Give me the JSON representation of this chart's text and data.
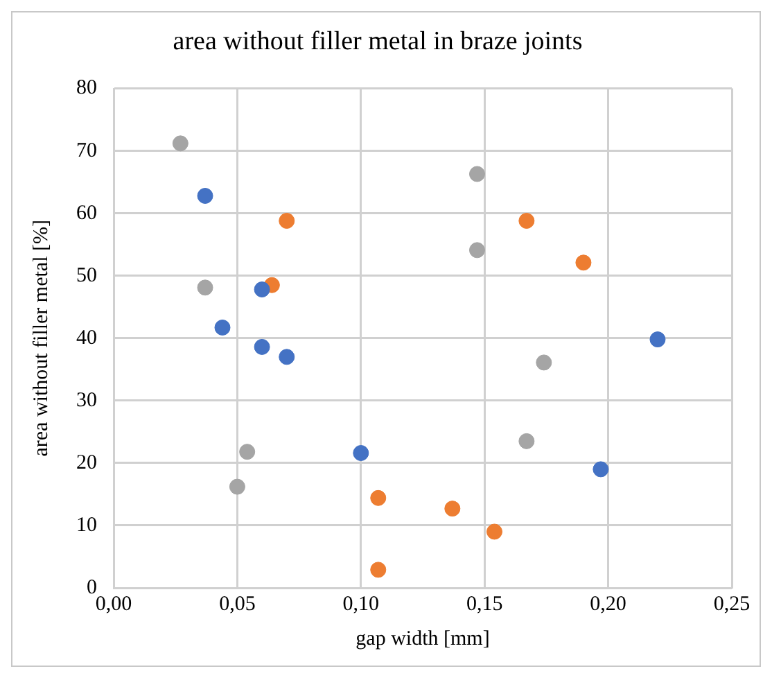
{
  "chart_data": {
    "type": "scatter",
    "title": "area without filler metal in braze joints",
    "xlabel": "gap width [mm]",
    "ylabel": "area without filler metal [%]",
    "xlim": [
      0,
      0.25
    ],
    "xticks": [
      {
        "value": 0,
        "label": "0,00"
      },
      {
        "value": 0.05,
        "label": "0,05"
      },
      {
        "value": 0.1,
        "label": "0,10"
      },
      {
        "value": 0.15,
        "label": "0,15"
      },
      {
        "value": 0.2,
        "label": "0,20"
      },
      {
        "value": 0.25,
        "label": "0,25"
      }
    ],
    "ylim": [
      0,
      80
    ],
    "yticks": [
      0,
      10,
      20,
      30,
      40,
      50,
      60,
      70,
      80
    ],
    "grid": true,
    "legend": false,
    "marker": "circle",
    "series": [
      {
        "color": "#4472c4",
        "x": [
          0.037,
          0.044,
          0.06,
          0.06,
          0.07,
          0.1,
          0.197,
          0.22
        ],
        "values": [
          62.8,
          41.7,
          47.8,
          38.6,
          37,
          21.6,
          19,
          39.8
        ]
      },
      {
        "color": "#ed7d31",
        "x": [
          0.07,
          0.064,
          0.107,
          0.107,
          0.137,
          0.154,
          0.167,
          0.19
        ],
        "values": [
          58.8,
          48.5,
          14.4,
          2.9,
          12.7,
          9,
          58.8,
          52.1
        ]
      },
      {
        "color": "#a5a5a5",
        "x": [
          0.027,
          0.037,
          0.05,
          0.054,
          0.147,
          0.147,
          0.167,
          0.174
        ],
        "values": [
          71.2,
          48.1,
          16.2,
          21.8,
          66.3,
          54.1,
          23.5,
          36.1
        ]
      }
    ]
  }
}
